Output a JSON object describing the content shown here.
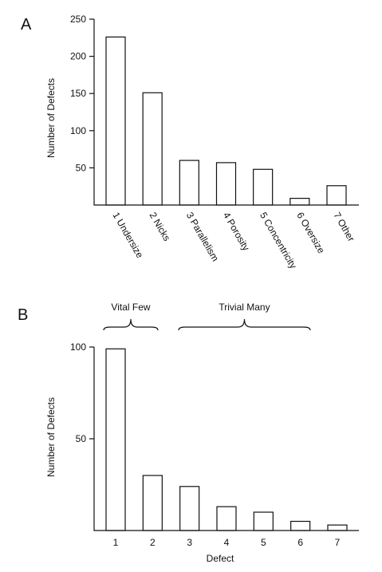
{
  "chart_data": [
    {
      "type": "bar",
      "panel_label": "A",
      "ylabel": "Number of Defects",
      "categories": [
        "1 Undersize",
        "2 Nicks",
        "3 Parallelism",
        "4 Porosity",
        "5 Concentricity",
        "6 Oversize",
        "7 Other"
      ],
      "values": [
        226,
        151,
        60,
        57,
        48,
        9,
        26
      ],
      "ylim": [
        0,
        250
      ],
      "yticks": [
        "50",
        "100",
        "150",
        "200",
        "250"
      ],
      "grid": false
    },
    {
      "type": "bar",
      "panel_label": "B",
      "ylabel": "Number of Defects",
      "xlabel": "Defect",
      "categories": [
        "1",
        "2",
        "3",
        "4",
        "5",
        "6",
        "7"
      ],
      "values": [
        99,
        30,
        24,
        13,
        10,
        5,
        3
      ],
      "ylim": [
        0,
        100
      ],
      "yticks": [
        "50",
        "100"
      ],
      "grid": false,
      "annotations": [
        {
          "text": "Vital Few",
          "from": 1,
          "to": 2
        },
        {
          "text": "Trivial Many",
          "from": 3,
          "to": 7
        }
      ]
    }
  ]
}
